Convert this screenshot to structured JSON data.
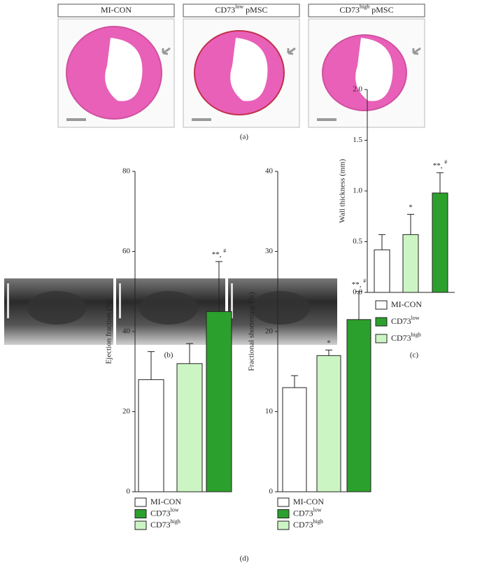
{
  "panel_labels": [
    "(a)",
    "(b)",
    "(c)",
    "(d)"
  ],
  "image_labels": [
    {
      "text": "MI-CON"
    },
    {
      "text": "CD73",
      "sup": "low",
      "suffix": " pMSC"
    },
    {
      "text": "CD73",
      "sup": "high",
      "suffix": " pMSC"
    }
  ],
  "chart_data": [
    {
      "type": "bar",
      "ylabel": "Wall thickness (mm)",
      "ylim": [
        0,
        2
      ],
      "yticks": [
        {
          "value": 0,
          "label": "0.0"
        },
        {
          "value": 0.5,
          "label": "0.5"
        },
        {
          "value": 1,
          "label": "1.0"
        },
        {
          "value": 1.5,
          "label": "1.5"
        },
        {
          "value": 2,
          "label": "2.0"
        }
      ],
      "series": [
        {
          "name": "MI-CON",
          "color": "#ffffff",
          "values": [
            0.42
          ],
          "errors": [
            0.15
          ]
        },
        {
          "name": "CD73",
          "sup": "low",
          "color": "#2ca02c",
          "values": [
            0.98
          ],
          "errors": [
            0.2
          ],
          "annotation": {
            "text": "**, ",
            "sup": "#"
          }
        },
        {
          "name": "CD73",
          "sup": "high",
          "color": "#ccf5c4",
          "values": [
            0.57
          ],
          "errors": [
            0.2
          ],
          "annotation": {
            "text": "*"
          }
        }
      ]
    },
    {
      "type": "bar",
      "ylabel": "Ejection fraction (%)",
      "ylim": [
        0,
        80
      ],
      "yticks": [
        0,
        20,
        40,
        60,
        80
      ],
      "series": [
        {
          "name": "MI-CON",
          "color": "#ffffff",
          "values": [
            28
          ],
          "errors": [
            7
          ]
        },
        {
          "name": "CD73",
          "sup": "low",
          "color": "#2ca02c",
          "values": [
            45
          ],
          "errors": [
            12.5
          ],
          "annotation": {
            "text": "**, ",
            "sup": "#"
          }
        },
        {
          "name": "CD73",
          "sup": "high",
          "color": "#ccf5c4",
          "values": [
            32
          ],
          "errors": [
            5
          ]
        }
      ]
    },
    {
      "type": "bar",
      "ylabel": "Fractional shortening (%)",
      "ylim": [
        0,
        40
      ],
      "yticks": [
        0,
        10,
        20,
        30,
        40
      ],
      "series": [
        {
          "name": "MI-CON",
          "color": "#ffffff",
          "values": [
            13
          ],
          "errors": [
            1.5
          ]
        },
        {
          "name": "CD73",
          "sup": "low",
          "color": "#2ca02c",
          "values": [
            21.5
          ],
          "errors": [
            3.5
          ],
          "annotation": {
            "text": "**, ",
            "sup": "#"
          }
        },
        {
          "name": "CD73",
          "sup": "high",
          "color": "#ccf5c4",
          "values": [
            17
          ],
          "errors": [
            0.7
          ],
          "annotation": {
            "text": "*"
          }
        }
      ]
    }
  ]
}
